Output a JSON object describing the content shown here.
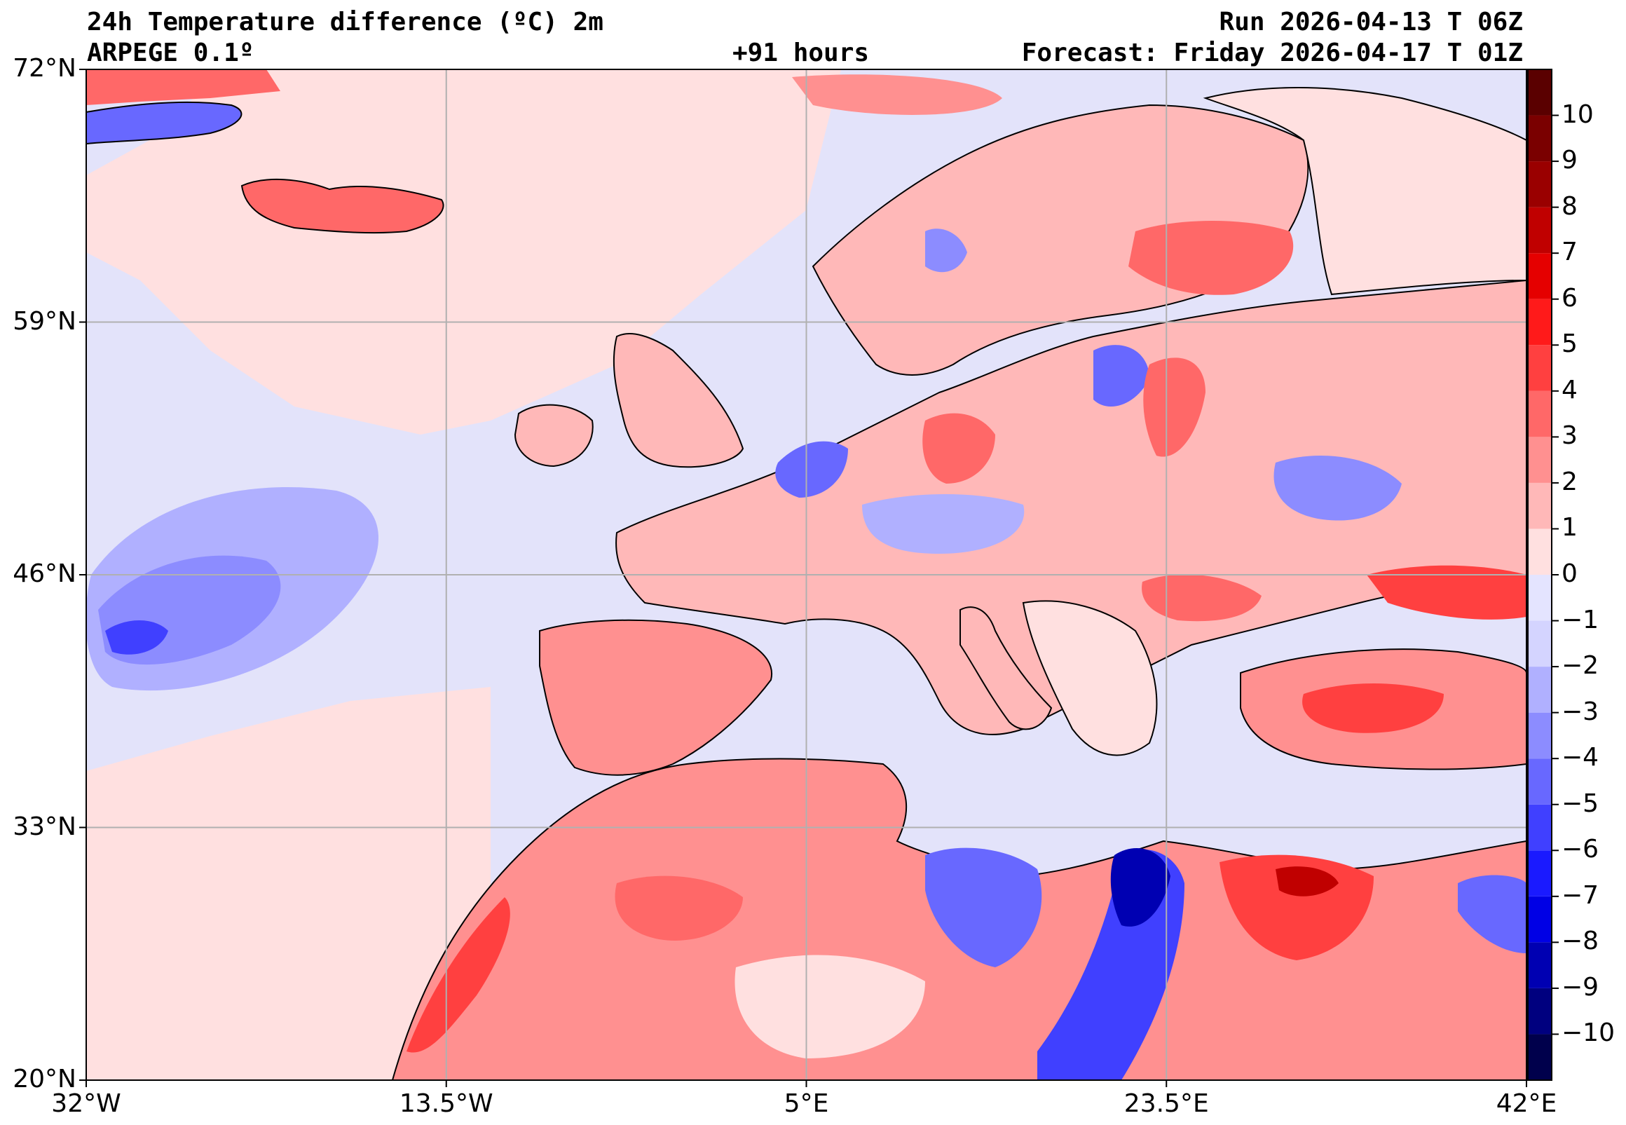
{
  "header": {
    "title": "24h Temperature difference (ºC) 2m",
    "model": "ARPEGE 0.1º",
    "lead_time": "+91 hours",
    "run": "Run 2026-04-13 T 06Z",
    "forecast": "Forecast: Friday 2026-04-17 T 01Z"
  },
  "map": {
    "lon_range": [
      -32,
      42
    ],
    "lat_range": [
      20,
      72
    ],
    "lat_ticks": [
      {
        "value": 72,
        "label": "72°N"
      },
      {
        "value": 59,
        "label": "59°N"
      },
      {
        "value": 46,
        "label": "46°N"
      },
      {
        "value": 33,
        "label": "33°N"
      },
      {
        "value": 20,
        "label": "20°N"
      }
    ],
    "lon_ticks": [
      {
        "value": -32,
        "label": "32°W"
      },
      {
        "value": -13.5,
        "label": "13.5°W"
      },
      {
        "value": 5,
        "label": "5°E"
      },
      {
        "value": 23.5,
        "label": "23.5°E"
      },
      {
        "value": 42,
        "label": "42°E"
      }
    ],
    "grid": true
  },
  "colorbar": {
    "range": [
      -11,
      11
    ],
    "ticks": [
      {
        "value": 10,
        "label": "10"
      },
      {
        "value": 9,
        "label": "9"
      },
      {
        "value": 8,
        "label": "8"
      },
      {
        "value": 7,
        "label": "7"
      },
      {
        "value": 6,
        "label": "6"
      },
      {
        "value": 5,
        "label": "5"
      },
      {
        "value": 4,
        "label": "4"
      },
      {
        "value": 3,
        "label": "3"
      },
      {
        "value": 2,
        "label": "2"
      },
      {
        "value": 1,
        "label": "1"
      },
      {
        "value": 0,
        "label": "0"
      },
      {
        "value": -1,
        "label": "−1"
      },
      {
        "value": -2,
        "label": "−2"
      },
      {
        "value": -3,
        "label": "−3"
      },
      {
        "value": -4,
        "label": "−4"
      },
      {
        "value": -5,
        "label": "−5"
      },
      {
        "value": -6,
        "label": "−6"
      },
      {
        "value": -7,
        "label": "−7"
      },
      {
        "value": -8,
        "label": "−8"
      },
      {
        "value": -9,
        "label": "−9"
      },
      {
        "value": -10,
        "label": "−10"
      }
    ],
    "colors": [
      "#00004c",
      "#00007f",
      "#0000b2",
      "#0000e5",
      "#1a1aff",
      "#4040ff",
      "#6868ff",
      "#8c8cff",
      "#b0b0ff",
      "#d4d4ff",
      "#e4e4ff",
      "#ffe0e0",
      "#ffb8b8",
      "#ff9090",
      "#ff6868",
      "#ff4040",
      "#ff1a1a",
      "#e50000",
      "#c00000",
      "#9a0000",
      "#7a0000",
      "#5a0000"
    ]
  },
  "colors": {
    "background_sea": "#e3e3fa",
    "gridline": "#b0b0b0",
    "coastline": "#000000"
  }
}
